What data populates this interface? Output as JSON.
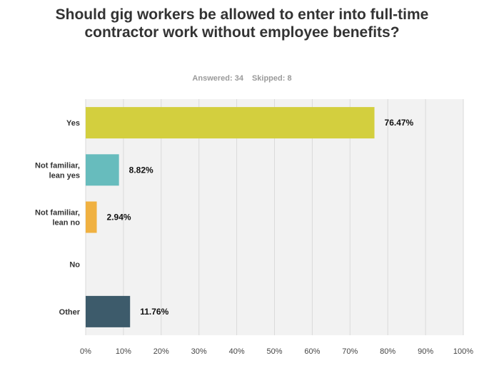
{
  "title": "Should gig workers be allowed to enter into full-time contractor work without employee benefits?",
  "answered": "Answered: 34",
  "skipped": "Skipped: 8",
  "chart_data": {
    "type": "bar",
    "orientation": "horizontal",
    "categories": [
      [
        "Yes"
      ],
      [
        "Not familiar,",
        "lean yes"
      ],
      [
        "Not familiar,",
        "lean no"
      ],
      [
        "No"
      ],
      [
        "Other"
      ]
    ],
    "values": [
      76.47,
      8.82,
      2.94,
      0,
      11.76
    ],
    "value_labels": [
      "76.47%",
      "8.82%",
      "2.94%",
      "",
      "11.76%"
    ],
    "colors": [
      "#d3cf3e",
      "#67bcbd",
      "#f0b141",
      "#9aa0a6",
      "#3d5b6b"
    ],
    "xlim": [
      0,
      100
    ],
    "xticks": [
      "0%",
      "10%",
      "20%",
      "30%",
      "40%",
      "50%",
      "60%",
      "70%",
      "80%",
      "90%",
      "100%"
    ],
    "grid": true
  }
}
